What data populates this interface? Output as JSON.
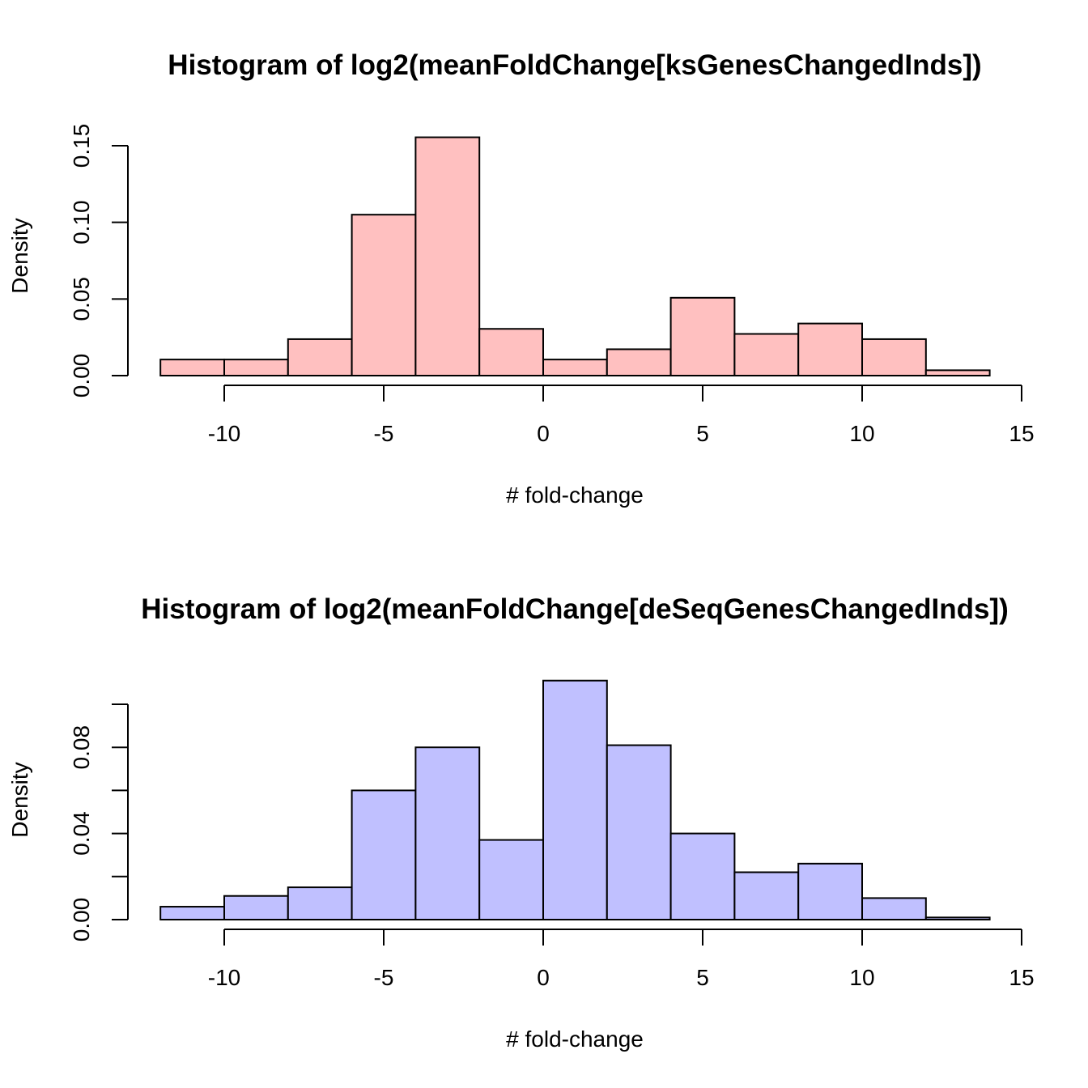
{
  "chart_data": [
    {
      "type": "bar",
      "title": "Histogram of log2(meanFoldChange[ksGenesChangedInds])",
      "xlabel": "# fold-change",
      "ylabel": "Density",
      "bar_color": "#ffc0c0",
      "bin_edges": [
        -12,
        -10,
        -8,
        -6,
        -4,
        -2,
        0,
        2,
        4,
        6,
        8,
        10,
        12,
        14
      ],
      "values": [
        0.0105,
        0.0105,
        0.0238,
        0.105,
        0.1555,
        0.0305,
        0.0105,
        0.0172,
        0.0508,
        0.0272,
        0.034,
        0.0238,
        0.0035
      ],
      "xlim": [
        -12,
        15
      ],
      "ylim": [
        0,
        0.15
      ],
      "x_ticks": [
        -10,
        -5,
        0,
        5,
        10,
        15
      ],
      "x_tick_labels": [
        "-10",
        "-5",
        "0",
        "5",
        "10",
        "15"
      ],
      "y_ticks": [
        0,
        0.05,
        0.1,
        0.15
      ],
      "y_tick_labels": [
        "0.00",
        "0.05",
        "0.10",
        "0.15"
      ]
    },
    {
      "type": "bar",
      "title": "Histogram of log2(meanFoldChange[deSeqGenesChangedInds])",
      "xlabel": "# fold-change",
      "ylabel": "Density",
      "bar_color": "#c0c0ff",
      "bin_edges": [
        -12,
        -10,
        -8,
        -6,
        -4,
        -2,
        0,
        2,
        4,
        6,
        8,
        10,
        12,
        14
      ],
      "values": [
        0.006,
        0.011,
        0.015,
        0.06,
        0.08,
        0.037,
        0.111,
        0.081,
        0.04,
        0.022,
        0.026,
        0.01,
        0.001
      ],
      "xlim": [
        -12,
        15
      ],
      "ylim": [
        0,
        0.1
      ],
      "x_ticks": [
        -10,
        -5,
        0,
        5,
        10,
        15
      ],
      "x_tick_labels": [
        "-10",
        "-5",
        "0",
        "5",
        "10",
        "15"
      ],
      "y_ticks": [
        0,
        0.02,
        0.04,
        0.06,
        0.08,
        0.1
      ],
      "y_tick_labels": [
        "0.00",
        "",
        "0.04",
        "",
        "0.08",
        ""
      ]
    }
  ]
}
